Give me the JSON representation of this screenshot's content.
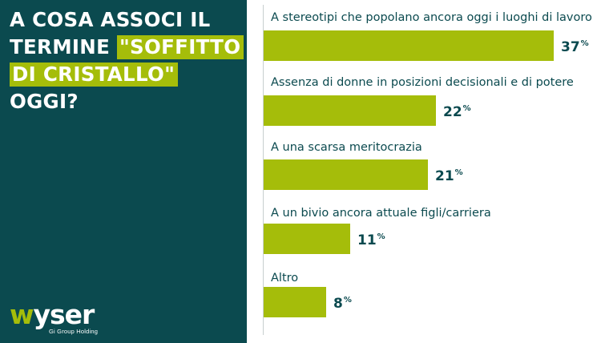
{
  "headline": {
    "line1": "A COSA ASSOCI IL",
    "line2_plain": "TERMINE ",
    "line2_highlight": "\"SOFFITTO",
    "line3_highlight": "DI CRISTALLO\"",
    "line4": "OGGI?"
  },
  "logo": {
    "word_accent": "w",
    "word_rest": "yser",
    "subtitle": "Gi Group Holding"
  },
  "colors": {
    "panel": "#0b4a4f",
    "accent": "#a5bd0a",
    "text": "#0b4a4f"
  },
  "chart_data": {
    "type": "bar",
    "orientation": "horizontal",
    "categories": [
      "A stereotipi che popolano ancora oggi i luoghi di lavoro",
      "Assenza di donne in posizioni decisionali e di potere",
      "A una scarsa meritocrazia",
      "A un bivio ancora attuale figli/carriera",
      "Altro"
    ],
    "values": [
      37,
      22,
      21,
      11,
      8
    ],
    "value_unit": "%",
    "xlim": [
      0,
      37
    ],
    "grid": false
  }
}
